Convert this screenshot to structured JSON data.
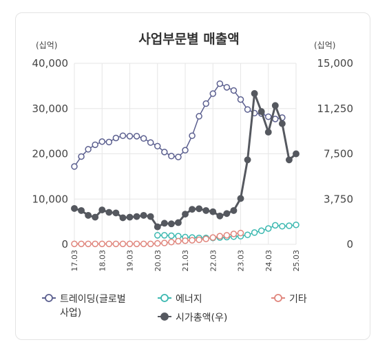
{
  "title": "사업부문별 매출액",
  "left_unit": "(십억)",
  "right_unit": "(십억)",
  "legend": [
    {
      "label": "트레이딩(글로벌사업)",
      "color": "#5b5f8f",
      "filled": false
    },
    {
      "label": "에너지",
      "color": "#3bb8b0",
      "filled": false
    },
    {
      "label": "기타",
      "color": "#e0857c",
      "filled": false
    },
    {
      "label": "시가총액(우)",
      "color": "#55585f",
      "filled": true
    }
  ],
  "chart_data": {
    "type": "line",
    "title": "사업부문별 매출액",
    "x_ticks": [
      "17.03",
      "18.03",
      "19.03",
      "20.03",
      "21.03",
      "22.03",
      "23.03",
      "24.03",
      "25.03"
    ],
    "y_left": {
      "ticks": [
        "0",
        "10,000",
        "20,000",
        "30,000",
        "40,000"
      ],
      "lim": [
        0,
        40000
      ]
    },
    "y_right": {
      "ticks": [
        "0",
        "3,750",
        "7,500",
        "11,250",
        "15,000"
      ],
      "lim": [
        0,
        15000
      ]
    },
    "grid": true,
    "series": [
      {
        "name": "트레이딩(글로벌사업)",
        "axis": "left",
        "color": "#5b5f8f",
        "marker": "hollow",
        "start": 0,
        "values": [
          17200,
          19400,
          21000,
          22000,
          22700,
          22600,
          23500,
          24000,
          23900,
          23900,
          23400,
          22500,
          21700,
          20400,
          19500,
          19300,
          20800,
          24000,
          28300,
          31100,
          33300,
          35500,
          34700,
          34000,
          32000,
          29800,
          29000,
          28900,
          28200,
          27700,
          28000
        ]
      },
      {
        "name": "에너지",
        "axis": "left",
        "color": "#3bb8b0",
        "marker": "hollow",
        "start": 12,
        "values": [
          2000,
          2000,
          1900,
          1800,
          1600,
          1500,
          1400,
          1400,
          1400,
          1500,
          1600,
          1700,
          1800,
          2100,
          2600,
          3000,
          3500,
          4200,
          4000,
          4100,
          4300
        ]
      },
      {
        "name": "기타",
        "axis": "left",
        "color": "#e0857c",
        "marker": "hollow",
        "start": 0,
        "values": [
          100,
          100,
          100,
          100,
          100,
          100,
          100,
          100,
          100,
          100,
          100,
          100,
          200,
          300,
          500,
          700,
          800,
          900,
          1000,
          1200,
          1500,
          1800,
          2000,
          2300,
          2500
        ]
      },
      {
        "name": "시가총액(우)",
        "axis": "right",
        "color": "#55585f",
        "marker": "filled",
        "start": 0,
        "values": [
          2970,
          2800,
          2400,
          2250,
          2850,
          2650,
          2600,
          2200,
          2250,
          2300,
          2400,
          2300,
          1450,
          1750,
          1700,
          1800,
          2500,
          2900,
          2950,
          2800,
          2700,
          2350,
          2550,
          2800,
          3800,
          7000,
          12500,
          11000,
          9300,
          11500,
          10000,
          7000,
          7500
        ]
      }
    ]
  }
}
